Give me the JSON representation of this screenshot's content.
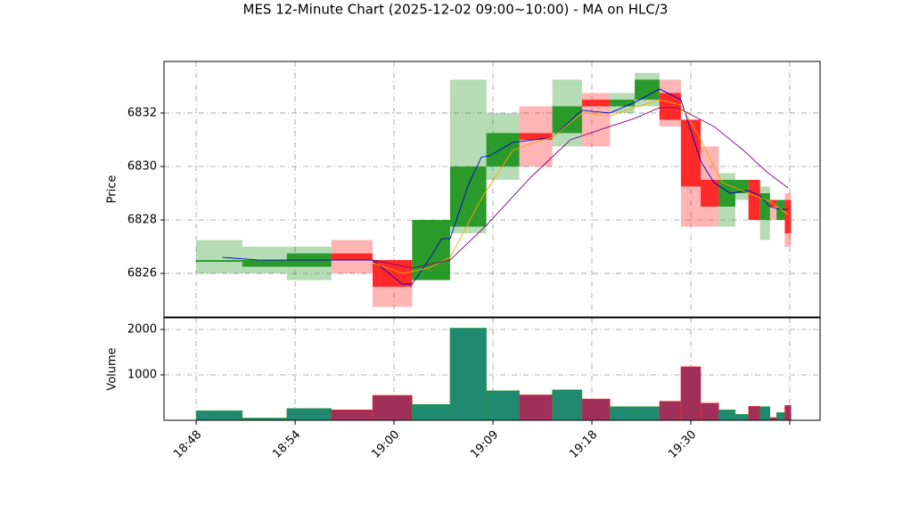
{
  "chart_data": [
    {
      "type": "candlestick",
      "title": "MES 12-Minute Chart (2025-12-02 09:00~10:00) - MA on HLC/3",
      "ylabel": "Price",
      "x": [
        0,
        28,
        55,
        82,
        107,
        131,
        154,
        176,
        196,
        216,
        234,
        251,
        266,
        281,
        294,
        306,
        317,
        327,
        335,
        342,
        348,
        352,
        357
      ],
      "open": [
        6826.5,
        6826.25,
        6826.25,
        6826.75,
        6826.5,
        6825.75,
        6827.75,
        6830.0,
        6831.25,
        6831.25,
        6832.5,
        6832.25,
        6832.5,
        6832.75,
        6831.75,
        6829.5,
        6828.5,
        6829.0,
        6829.5,
        6828.0,
        6828.75,
        6828.0,
        6828.75
      ],
      "high": [
        6827.25,
        6827.0,
        6827.0,
        6827.25,
        6826.5,
        6828.0,
        6833.25,
        6832.0,
        6832.25,
        6833.25,
        6832.75,
        6832.75,
        6833.5,
        6833.25,
        6831.75,
        6830.75,
        6829.75,
        6829.5,
        6829.5,
        6829.25,
        6828.75,
        6828.75,
        6829.0
      ],
      "low": [
        6826.0,
        6826.0,
        6825.75,
        6826.0,
        6824.75,
        6825.75,
        6827.5,
        6829.5,
        6830.0,
        6830.75,
        6830.75,
        6832.0,
        6832.25,
        6831.5,
        6827.75,
        6827.75,
        6827.75,
        6828.75,
        6828.0,
        6827.25,
        6828.0,
        6828.0,
        6827.0
      ],
      "close": [
        6826.5,
        6826.5,
        6826.75,
        6826.5,
        6825.5,
        6828.0,
        6830.0,
        6831.25,
        6831.0,
        6832.25,
        6832.25,
        6832.5,
        6833.25,
        6831.75,
        6829.25,
        6828.5,
        6829.5,
        6829.5,
        6828.0,
        6829.0,
        6828.5,
        6828.75,
        6827.5
      ],
      "up_color": "#2a9a2a",
      "down_color": "#ff2a2a",
      "series": [
        {
          "color": "#0000cc",
          "x": [
            16,
            38,
            59,
            84,
            107,
            119,
            125,
            131,
            141,
            149,
            154,
            165,
            173,
            178,
            192,
            205,
            216,
            234,
            251,
            266,
            281,
            294,
            306,
            314,
            324,
            335,
            342,
            348,
            354,
            359
          ],
          "values": [
            6826.6,
            6826.5,
            6826.5,
            6826.5,
            6826.5,
            6825.9,
            6825.6,
            6825.6,
            6826.5,
            6827.3,
            6827.3,
            6829.3,
            6830.35,
            6830.4,
            6830.9,
            6831.0,
            6831.1,
            6832.1,
            6832.0,
            6832.4,
            6832.9,
            6832.5,
            6830.2,
            6829.4,
            6829.0,
            6829.1,
            6828.9,
            6828.5,
            6828.4,
            6828.4
          ]
        },
        {
          "color": "#ffa500",
          "x": [
            107,
            125,
            141,
            154,
            173,
            192,
            205,
            216,
            234,
            251,
            266,
            281,
            294,
            306,
            319,
            335,
            348,
            359
          ],
          "values": [
            6826.4,
            6826.0,
            6826.2,
            6826.6,
            6828.8,
            6830.6,
            6830.9,
            6831.1,
            6832.0,
            6831.9,
            6832.2,
            6832.5,
            6832.3,
            6831.0,
            6829.4,
            6829.0,
            6828.7,
            6828.2
          ]
        },
        {
          "color": "#800080",
          "x": [
            107,
            131,
            154,
            176,
            203,
            227,
            251,
            266,
            281,
            292,
            314,
            332,
            346,
            359
          ],
          "values": [
            6826.5,
            6826.2,
            6826.5,
            6827.8,
            6829.6,
            6831.0,
            6831.5,
            6831.8,
            6832.2,
            6832.2,
            6831.5,
            6830.6,
            6829.8,
            6829.2
          ]
        }
      ],
      "xlim": [
        -19.5,
        378.4
      ],
      "ylim": [
        6824.37,
        6833.93
      ],
      "yticks": [
        6826,
        6828,
        6830,
        6832
      ],
      "grid": true
    },
    {
      "type": "bar",
      "ylabel": "Volume",
      "x": [
        0,
        28,
        55,
        82,
        107,
        131,
        154,
        176,
        196,
        216,
        234,
        251,
        266,
        281,
        294,
        306,
        317,
        327,
        335,
        342,
        348,
        352,
        357
      ],
      "values": [
        210,
        50,
        260,
        230,
        550,
        350,
        2030,
        650,
        560,
        670,
        470,
        300,
        300,
        420,
        1180,
        380,
        230,
        130,
        310,
        300,
        60,
        170,
        330
      ],
      "up_color": "#1f8a70",
      "down_color": "#a0305a",
      "xlim": [
        -19.5,
        378.4
      ],
      "ylim": [
        0,
        2255
      ],
      "yticks": [
        1000,
        2000
      ],
      "xticks": [
        {
          "value": 0,
          "label": "18:48"
        },
        {
          "value": 60,
          "label": "18:54"
        },
        {
          "value": 120,
          "label": "19:00"
        },
        {
          "value": 180,
          "label": "19:09"
        },
        {
          "value": 240,
          "label": "19:18"
        },
        {
          "value": 300,
          "label": "19:30"
        },
        {
          "value": 360,
          "label": null
        }
      ],
      "grid": true
    }
  ]
}
